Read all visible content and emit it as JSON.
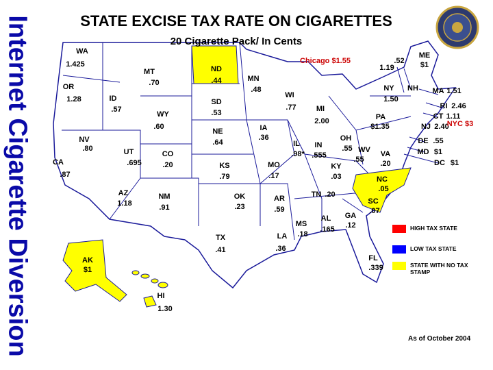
{
  "side_title": "Internet Cigarette Diversion",
  "title": "STATE EXCISE TAX RATE ON CIGARETTES",
  "subtitle": "20 Cigarette Pack/ In Cents",
  "states": [
    {
      "abbr": "WA",
      "rate": "1.425"
    },
    {
      "abbr": "OR",
      "rate": "1.28"
    },
    {
      "abbr": "CA",
      "rate": ".87"
    },
    {
      "abbr": "NV",
      "rate": ".80"
    },
    {
      "abbr": "ID",
      "rate": ".57"
    },
    {
      "abbr": "MT",
      "rate": ".70"
    },
    {
      "abbr": "WY",
      "rate": ".60"
    },
    {
      "abbr": "UT",
      "rate": ".695"
    },
    {
      "abbr": "AZ",
      "rate": "1.18"
    },
    {
      "abbr": "CO",
      "rate": ".20"
    },
    {
      "abbr": "NM",
      "rate": ".91"
    },
    {
      "abbr": "ND",
      "rate": ".44",
      "color": "#ffff00"
    },
    {
      "abbr": "SD",
      "rate": ".53"
    },
    {
      "abbr": "NE",
      "rate": ".64"
    },
    {
      "abbr": "KS",
      "rate": ".79"
    },
    {
      "abbr": "OK",
      "rate": ".23"
    },
    {
      "abbr": "TX",
      "rate": ".41"
    },
    {
      "abbr": "MN",
      "rate": ".48"
    },
    {
      "abbr": "IA",
      "rate": ".36"
    },
    {
      "abbr": "MO",
      "rate": ".17"
    },
    {
      "abbr": "AR",
      "rate": ".59"
    },
    {
      "abbr": "LA",
      "rate": ".36"
    },
    {
      "abbr": "WI",
      "rate": ".77"
    },
    {
      "abbr": "IL",
      "rate": ".98*"
    },
    {
      "abbr": "MI",
      "rate": "2.00"
    },
    {
      "abbr": "IN",
      "rate": ".555"
    },
    {
      "abbr": "KY",
      "rate": ".03"
    },
    {
      "abbr": "TN",
      "rate": ".20"
    },
    {
      "abbr": "MS",
      "rate": ".18"
    },
    {
      "abbr": "AL",
      "rate": ".165"
    },
    {
      "abbr": "GA",
      "rate": ".12"
    },
    {
      "abbr": "FL",
      "rate": ".339"
    },
    {
      "abbr": "OH",
      "rate": ".55"
    },
    {
      "abbr": "WV",
      "rate": ".55"
    },
    {
      "abbr": "VA",
      "rate": ".20"
    },
    {
      "abbr": "NC",
      "rate": ".05",
      "color": "#ffff00"
    },
    {
      "abbr": "SC",
      "rate": ".07",
      "color": "#ffff00"
    },
    {
      "abbr": "PA",
      "rate": "$1.35"
    },
    {
      "abbr": "NY",
      "rate": "1.50"
    },
    {
      "rate": "1.19"
    },
    {
      "abbr": "NH",
      "rate": ".52"
    },
    {
      "abbr": "ME",
      "rate": "$1"
    },
    {
      "abbr": "MA",
      "rate": "1.51"
    },
    {
      "abbr": "RI",
      "rate": "2.46"
    },
    {
      "abbr": "CT",
      "rate": "1.11"
    },
    {
      "abbr": "NJ",
      "rate": "2.40"
    },
    {
      "abbr": "DE",
      "rate": ".55"
    },
    {
      "abbr": "MD",
      "rate": "$1"
    },
    {
      "abbr": "DC",
      "rate": "$1"
    },
    {
      "abbr": "AK",
      "rate": "$1",
      "color": "#ffff00"
    },
    {
      "abbr": "HI",
      "rate": "1.30"
    }
  ],
  "city_rates": [
    "Chicago $1.55",
    "NYC $3"
  ],
  "legend": [
    {
      "label": "HIGH TAX STATE",
      "color": "#ff0000"
    },
    {
      "label": "LOW TAX STATE",
      "color": "#0000ff"
    },
    {
      "label": "STATE WITH NO TAX STAMP",
      "color": "#ffff00"
    }
  ],
  "footnote": "As of October 2004"
}
